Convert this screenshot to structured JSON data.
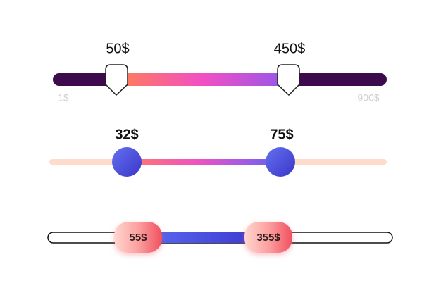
{
  "sliders": [
    {
      "low_label": "50$",
      "high_label": "450$",
      "min_label": "1$",
      "max_label": "900$"
    },
    {
      "low_label": "32$",
      "high_label": "75$"
    },
    {
      "low_label": "55$",
      "high_label": "355$"
    }
  ]
}
